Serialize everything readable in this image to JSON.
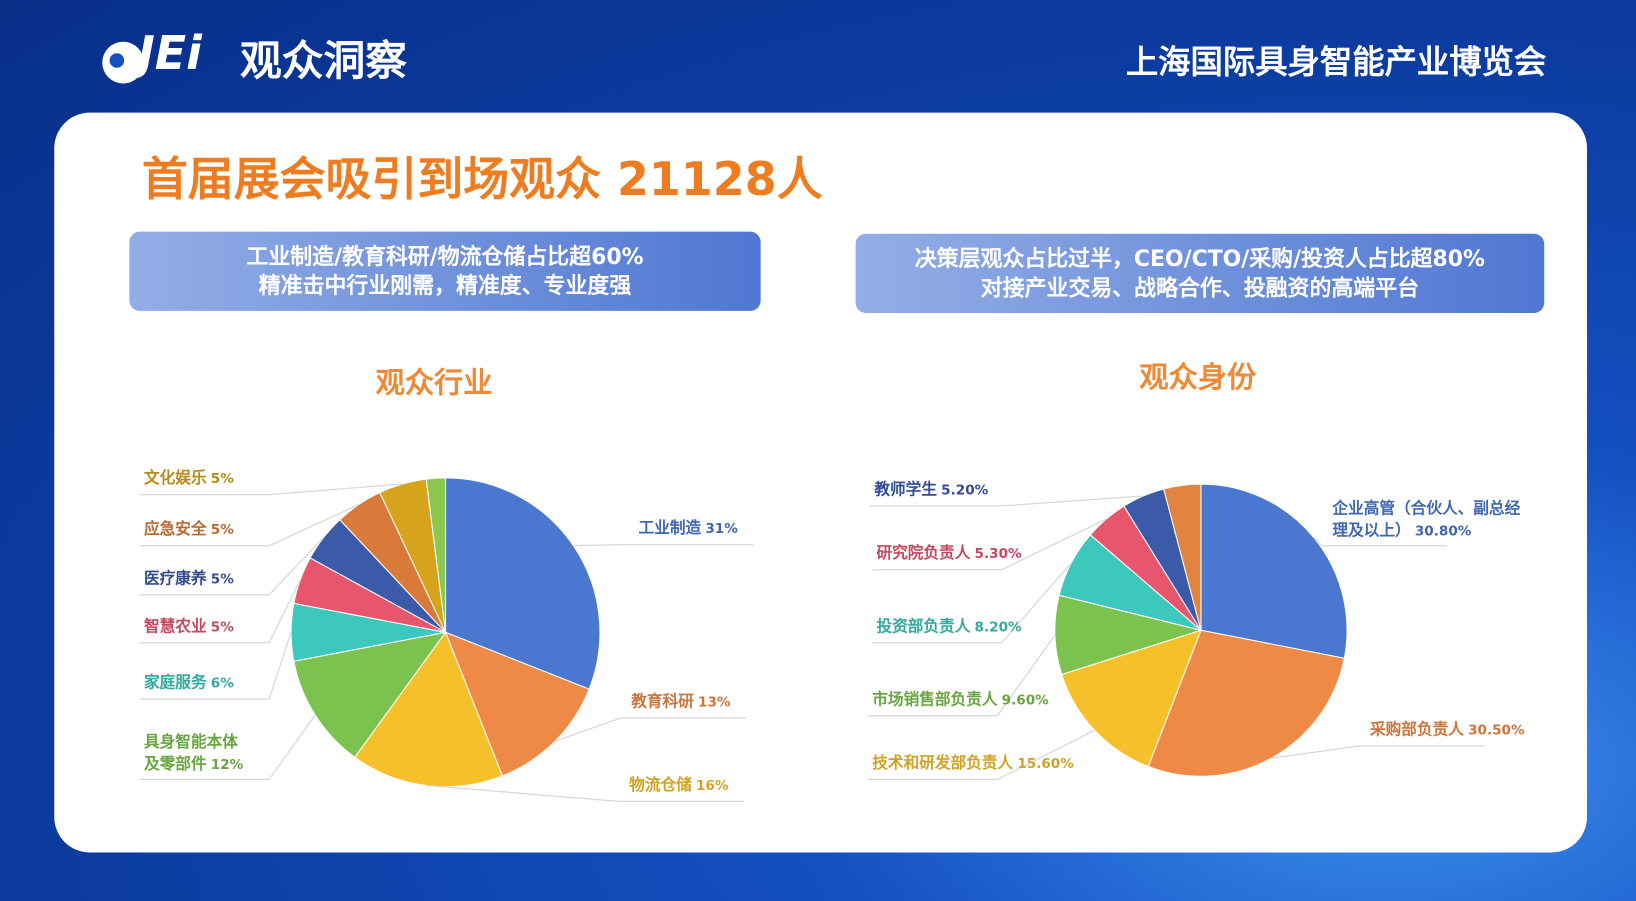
{
  "header": {
    "logo": "JEi",
    "title": "观众洞察",
    "event": "上海国际具身智能产业博览会"
  },
  "headline": "首届展会吸引到场观众 21128人",
  "banners": [
    {
      "lines": [
        "工业制造/教育科研/物流仓储占比超60%",
        "精准击中行业刚需，精准度、专业度强"
      ]
    },
    {
      "lines": [
        "决策层观众占比过半，CEO/CTO/采购/投资人占比超80%",
        "对接产业交易、战略合作、投融资的高端平台"
      ]
    }
  ],
  "chart_data": [
    {
      "type": "pie",
      "title": "观众行业",
      "categories": [
        "工业制造",
        "教育科研",
        "物流仓储",
        "具身智能本体\n及零部件",
        "家庭服务",
        "智慧农业",
        "医疗康养",
        "应急安全",
        "文化娱乐",
        null
      ],
      "values": [
        31,
        13,
        16,
        12,
        6,
        5,
        5,
        5,
        5,
        2
      ],
      "value_labels": [
        "31%",
        "13%",
        "16%",
        "12%",
        "6%",
        "5%",
        "5%",
        "5%",
        "5%",
        null
      ],
      "colors": [
        "#4a78d0",
        "#ee8a45",
        "#f5c02a",
        "#7cc24e",
        "#3cc8bd",
        "#e8566e",
        "#3b5aa8",
        "#d97a3a",
        "#d6a41c",
        "#8cc850"
      ]
    },
    {
      "type": "pie",
      "title": "观众身份",
      "categories": [
        "企业高管（合伙人、副总经\n理及以上）",
        "采购部负责人",
        "技术和研发部负责人",
        "市场销售部负责人",
        "投资部负责人",
        "研究院负责人",
        "教师学生",
        null
      ],
      "values": [
        30.8,
        30.5,
        15.6,
        9.6,
        8.2,
        5.3,
        5.2,
        4.5
      ],
      "value_labels": [
        "30.80%",
        "30.50%",
        "15.60%",
        "9.60%",
        "8.20%",
        "5.30%",
        "5.20%",
        null
      ],
      "colors": [
        "#4a78d0",
        "#ee8a45",
        "#f5c02a",
        "#7cc24e",
        "#3cc8bd",
        "#e8566e",
        "#3b5aa8",
        "#e0843f"
      ]
    }
  ]
}
